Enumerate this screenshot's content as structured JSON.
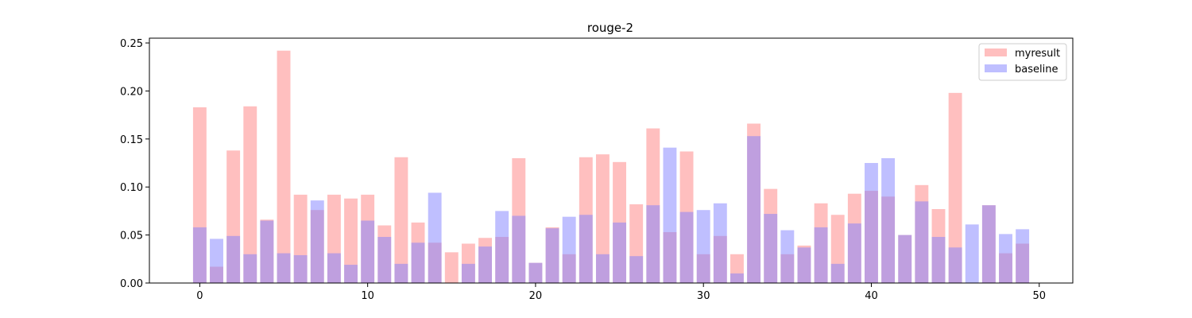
{
  "chart_data": {
    "type": "bar",
    "title": "rouge-2",
    "xlabel": "",
    "ylabel": "",
    "x": [
      0,
      1,
      2,
      3,
      4,
      5,
      6,
      7,
      8,
      9,
      10,
      11,
      12,
      13,
      14,
      15,
      16,
      17,
      18,
      19,
      20,
      21,
      22,
      23,
      24,
      25,
      26,
      27,
      28,
      29,
      30,
      31,
      32,
      33,
      34,
      35,
      36,
      37,
      38,
      39,
      40,
      41,
      42,
      43,
      44,
      45,
      46,
      47,
      48,
      49
    ],
    "xlim": [
      -3,
      52
    ],
    "ylim": [
      0,
      0.255
    ],
    "x_ticks": [
      0,
      10,
      20,
      30,
      40,
      50
    ],
    "y_ticks": [
      0.0,
      0.05,
      0.1,
      0.15,
      0.2,
      0.25
    ],
    "x_tick_labels": [
      "0",
      "10",
      "20",
      "30",
      "40",
      "50"
    ],
    "y_tick_labels": [
      "0.00",
      "0.05",
      "0.10",
      "0.15",
      "0.20",
      "0.25"
    ],
    "grid": false,
    "legend_position": "top-right",
    "series": [
      {
        "name": "myresult",
        "color": "#ff7f7f",
        "opacity": 0.5,
        "values": [
          0.183,
          0.017,
          0.138,
          0.184,
          0.066,
          0.242,
          0.092,
          0.076,
          0.092,
          0.088,
          0.092,
          0.06,
          0.131,
          0.063,
          0.042,
          0.032,
          0.041,
          0.047,
          0.048,
          0.13,
          0.021,
          0.058,
          0.03,
          0.131,
          0.134,
          0.126,
          0.082,
          0.161,
          0.053,
          0.137,
          0.03,
          0.049,
          0.03,
          0.166,
          0.098,
          0.03,
          0.039,
          0.083,
          0.071,
          0.093,
          0.096,
          0.09,
          0.05,
          0.102,
          0.077,
          0.198,
          0.0,
          0.081,
          0.031,
          0.041
        ]
      },
      {
        "name": "baseline",
        "color": "#7f7fff",
        "opacity": 0.5,
        "values": [
          0.058,
          0.046,
          0.049,
          0.03,
          0.065,
          0.031,
          0.029,
          0.086,
          0.031,
          0.019,
          0.065,
          0.048,
          0.02,
          0.042,
          0.094,
          0.0,
          0.02,
          0.038,
          0.075,
          0.07,
          0.021,
          0.057,
          0.069,
          0.071,
          0.03,
          0.063,
          0.028,
          0.081,
          0.141,
          0.074,
          0.076,
          0.083,
          0.01,
          0.153,
          0.072,
          0.055,
          0.037,
          0.058,
          0.02,
          0.062,
          0.125,
          0.13,
          0.05,
          0.085,
          0.048,
          0.037,
          0.061,
          0.081,
          0.051,
          0.056
        ]
      }
    ]
  }
}
